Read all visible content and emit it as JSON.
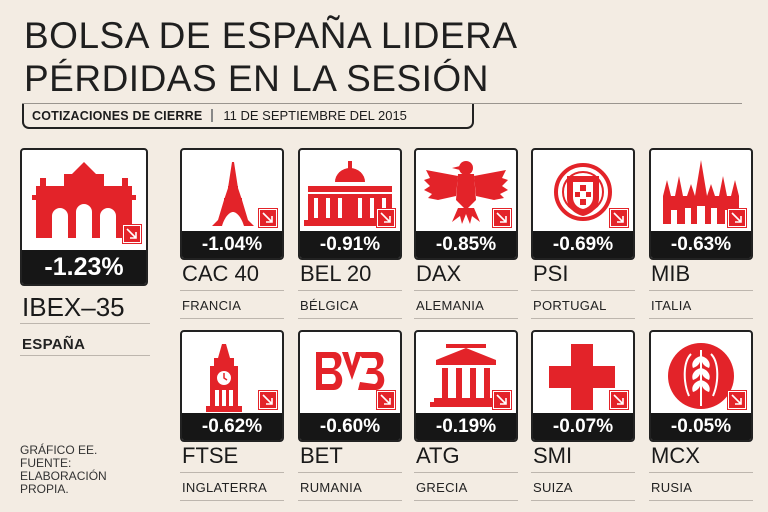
{
  "header": {
    "title_line1": "BOLSA DE ESPAÑA LIDERA",
    "title_line2": "PÉRDIDAS EN LA SESIÓN",
    "subtitle_label": "COTIZACIONES DE CIERRE",
    "subtitle_date": "11 DE SEPTIEMBRE DEL 2015"
  },
  "colors": {
    "accent": "#e32329",
    "dark": "#161616",
    "background": "#f3ece3"
  },
  "chart_data": {
    "type": "table",
    "title": "BOLSA DE ESPAÑA LIDERA PÉRDIDAS EN LA SESIÓN",
    "subtitle": "COTIZACIONES DE CIERRE | 11 DE SEPTIEMBRE DEL 2015",
    "unit": "%",
    "categories": [
      "IBEX-35",
      "CAC 40",
      "BEL 20",
      "DAX",
      "PSI",
      "MIB",
      "FTSE",
      "BET",
      "ATG",
      "SMI",
      "MCX"
    ],
    "values": [
      -1.23,
      -1.04,
      -0.91,
      -0.85,
      -0.69,
      -0.63,
      -0.62,
      -0.6,
      -0.19,
      -0.07,
      -0.05
    ],
    "items": [
      {
        "index": "IBEX–35",
        "country": "ESPAÑA",
        "change": "-1.23%",
        "value": -1.23,
        "icon": "puerta-alcala-icon"
      },
      {
        "index": "CAC 40",
        "country": "FRANCIA",
        "change": "-1.04%",
        "value": -1.04,
        "icon": "eiffel-tower-icon"
      },
      {
        "index": "BEL 20",
        "country": "BÉLGICA",
        "change": "-0.91%",
        "value": -0.91,
        "icon": "palace-dome-icon"
      },
      {
        "index": "DAX",
        "country": "ALEMANIA",
        "change": "-0.85%",
        "value": -0.85,
        "icon": "eagle-icon"
      },
      {
        "index": "PSI",
        "country": "PORTUGAL",
        "change": "-0.69%",
        "value": -0.69,
        "icon": "portugal-shield-icon"
      },
      {
        "index": "MIB",
        "country": "ITALIA",
        "change": "-0.63%",
        "value": -0.63,
        "icon": "milan-cathedral-icon"
      },
      {
        "index": "FTSE",
        "country": "INGLATERRA",
        "change": "-0.62%",
        "value": -0.62,
        "icon": "big-ben-icon"
      },
      {
        "index": "BET",
        "country": "RUMANIA",
        "change": "-0.60%",
        "value": -0.6,
        "icon": "bvb-logo-icon"
      },
      {
        "index": "ATG",
        "country": "GRECIA",
        "change": "-0.19%",
        "value": -0.19,
        "icon": "greek-temple-icon"
      },
      {
        "index": "SMI",
        "country": "SUIZA",
        "change": "-0.07%",
        "value": -0.07,
        "icon": "swiss-cross-icon"
      },
      {
        "index": "MCX",
        "country": "RUSIA",
        "change": "-0.05%",
        "value": -0.05,
        "icon": "wheat-icon"
      }
    ]
  },
  "footer": {
    "line1": "GRÁFICO EE.",
    "line2": "FUENTE:",
    "line3": "ELABORACIÓN",
    "line4": "PROPIA."
  }
}
